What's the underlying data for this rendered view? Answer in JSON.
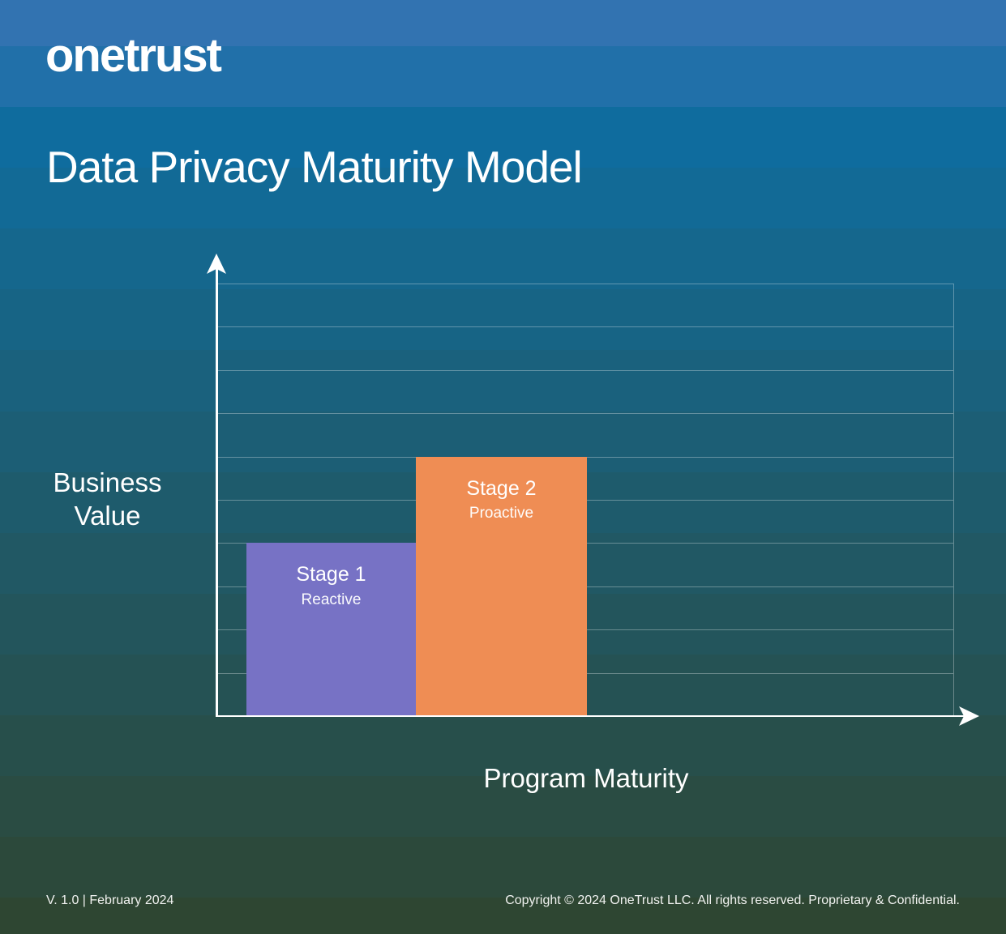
{
  "header": {
    "logo": "onetrust",
    "title": "Data Privacy Maturity Model"
  },
  "chart_data": {
    "type": "bar",
    "title": "Data Privacy Maturity Model",
    "xlabel": "Program Maturity",
    "ylabel": "Business Value",
    "ylim": [
      0,
      10
    ],
    "grid_rows": 10,
    "grid": true,
    "axis_arrows": true,
    "categories": [
      "Stage 1",
      "Stage 2"
    ],
    "stages": [
      {
        "label": "Stage 1",
        "sublabel": "Reactive",
        "value": 4,
        "color": "#7772C5"
      },
      {
        "label": "Stage 2",
        "sublabel": "Proactive",
        "value": 6,
        "color": "#EF8D54"
      }
    ]
  },
  "footer": {
    "version": "V. 1.0 | February 2024",
    "copyright": "Copyright © 2024 OneTrust LLC. All rights reserved. Proprietary & Confidential."
  },
  "colors": {
    "stage1_fill": "#7772C5",
    "stage2_fill": "#EF8D54",
    "axis": "#FFFFFF",
    "gridline": "rgba(255,255,255,0.32)",
    "text": "#FFFFFF",
    "background_top": "#3273B1",
    "background_bottom": "#2E4632"
  }
}
